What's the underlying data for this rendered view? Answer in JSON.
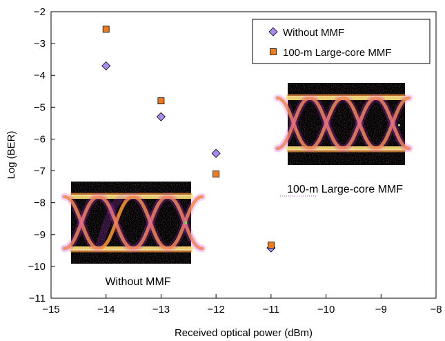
{
  "chart_data": {
    "type": "scatter",
    "title": "",
    "xlabel": "Received optical power (dBm)",
    "ylabel": "Log (BER)",
    "xlim": [
      -15,
      -8
    ],
    "ylim": [
      -11,
      -2
    ],
    "x_ticks": [
      -15,
      -14,
      -13,
      -12,
      -11,
      -10,
      -9,
      -8
    ],
    "y_ticks": [
      -2,
      -3,
      -4,
      -5,
      -6,
      -7,
      -8,
      -9,
      -10,
      -11
    ],
    "x_tick_labels": [
      "−15",
      "−14",
      "−13",
      "−12",
      "−11",
      "−10",
      "−9",
      "−8"
    ],
    "y_tick_labels": [
      "−2",
      "−3",
      "−4",
      "−5",
      "−6",
      "−7",
      "−8",
      "−9",
      "−10",
      "−11"
    ],
    "grid": false,
    "legend_position": "top-right",
    "series": [
      {
        "name": "Without MMF",
        "marker": "diamond",
        "color": "#a98bf0",
        "points": [
          {
            "x": -14,
            "y": -3.7
          },
          {
            "x": -13,
            "y": -5.3
          },
          {
            "x": -12,
            "y": -6.45
          },
          {
            "x": -11,
            "y": -9.42
          }
        ]
      },
      {
        "name": "100-m Large-core MMF",
        "marker": "square",
        "color": "#f07a1e",
        "points": [
          {
            "x": -14,
            "y": -2.55
          },
          {
            "x": -13,
            "y": -4.8
          },
          {
            "x": -12,
            "y": -7.1
          },
          {
            "x": -11,
            "y": -9.33
          }
        ]
      }
    ],
    "annotations": [
      {
        "id": "without",
        "text": "Without MMF"
      },
      {
        "id": "largecore",
        "text": "100-m Large-core MMF"
      }
    ]
  }
}
